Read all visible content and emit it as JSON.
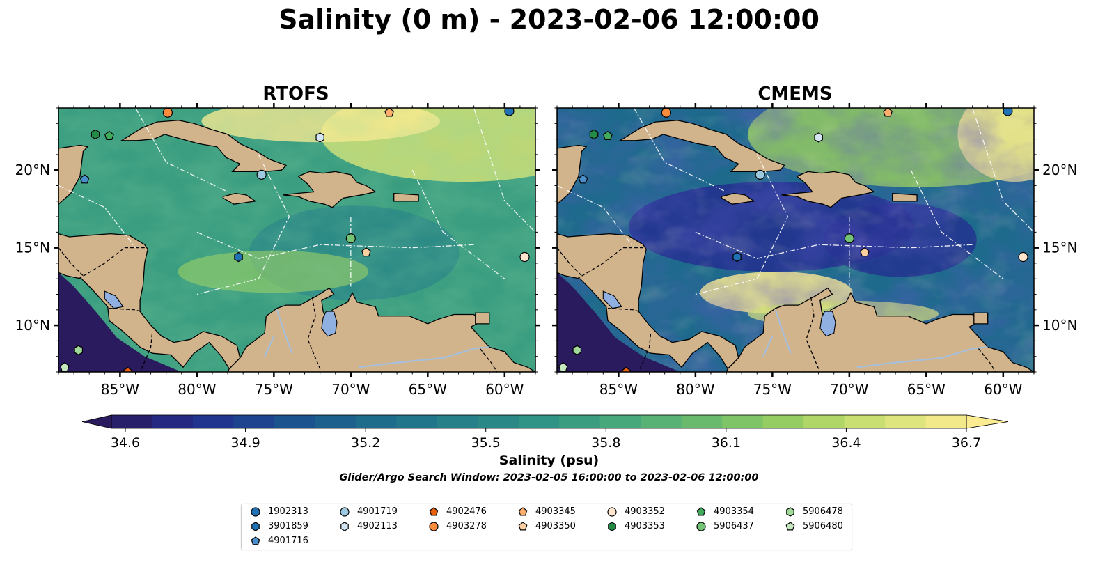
{
  "title": "Salinity (0 m) - 2023-02-06 12:00:00",
  "panels": [
    {
      "title": "RTOFS",
      "field": "rtofs"
    },
    {
      "title": "CMEMS",
      "field": "cmems"
    }
  ],
  "map_extent": {
    "lon": [
      -89,
      -58
    ],
    "lat": [
      7,
      24
    ]
  },
  "lon_ticks": [
    {
      "value": -85,
      "label": "85°W"
    },
    {
      "value": -80,
      "label": "80°W"
    },
    {
      "value": -75,
      "label": "75°W"
    },
    {
      "value": -70,
      "label": "70°W"
    },
    {
      "value": -65,
      "label": "65°W"
    },
    {
      "value": -60,
      "label": "60°W"
    }
  ],
  "lat_ticks": [
    {
      "value": 20,
      "label": "20°N"
    },
    {
      "value": 15,
      "label": "15°N"
    },
    {
      "value": 10,
      "label": "10°N"
    }
  ],
  "colorbar": {
    "label": "Salinity (psu)",
    "min": 34.6,
    "max": 36.7,
    "ticks": [
      "34.6",
      "34.9",
      "35.2",
      "35.5",
      "35.8",
      "36.1",
      "36.4",
      "36.7"
    ],
    "extend": "both",
    "colormap_stops": [
      "#2a1a5e",
      "#232f8f",
      "#1b4f8f",
      "#1d6a8c",
      "#247f8a",
      "#2f9385",
      "#48a97b",
      "#6dbc6c",
      "#9cd060",
      "#d4e276",
      "#fbeb91"
    ]
  },
  "colors": {
    "land": "#d2b48c",
    "water": "#a5bfdd",
    "lake": "#8fb0e0"
  },
  "search_window": "Glider/Argo Search Window: 2023-02-05 16:00:00 to 2023-02-06 12:00:00",
  "legend": [
    {
      "id": "1902313",
      "marker": "circle",
      "color": "#2171b5",
      "lon": -59.7,
      "lat": 23.8
    },
    {
      "id": "3901859",
      "marker": "hexagon",
      "color": "#2171b5",
      "lon": -77.3,
      "lat": 14.4
    },
    {
      "id": "4901716",
      "marker": "pentagon",
      "color": "#4a8fcc",
      "lon": -87.3,
      "lat": 19.4
    },
    {
      "id": "4901719",
      "marker": "circle",
      "color": "#9ecae1",
      "lon": -75.8,
      "lat": 19.7
    },
    {
      "id": "4902113",
      "marker": "hexagon",
      "color": "#d4e6f4",
      "lon": -72.0,
      "lat": 22.1
    },
    {
      "id": "4902476",
      "marker": "pentagon",
      "color": "#e6600d",
      "lon": -84.5,
      "lat": 7.0
    },
    {
      "id": "4903278",
      "marker": "circle",
      "color": "#fd8d3c",
      "lon": -81.9,
      "lat": 23.7
    },
    {
      "id": "4903345",
      "marker": "pentagon",
      "color": "#fdae6b",
      "lon": -67.5,
      "lat": 23.7
    },
    {
      "id": "4903350",
      "marker": "pentagon",
      "color": "#fdd0a2",
      "lon": -69.0,
      "lat": 14.7
    },
    {
      "id": "4903352",
      "marker": "circle",
      "color": "#fee6ce",
      "lon": -58.7,
      "lat": 14.4
    },
    {
      "id": "4903353",
      "marker": "hexagon",
      "color": "#238b45",
      "lon": -86.6,
      "lat": 22.3
    },
    {
      "id": "4903354",
      "marker": "pentagon",
      "color": "#41ab5d",
      "lon": -85.7,
      "lat": 22.2
    },
    {
      "id": "5906437",
      "marker": "circle",
      "color": "#74c476",
      "lon": -70.0,
      "lat": 15.6
    },
    {
      "id": "5906478",
      "marker": "hexagon",
      "color": "#a1d99b",
      "lon": -87.7,
      "lat": 8.4
    },
    {
      "id": "5906480",
      "marker": "pentagon",
      "color": "#c7e9c0",
      "lon": -88.6,
      "lat": 7.3
    }
  ]
}
